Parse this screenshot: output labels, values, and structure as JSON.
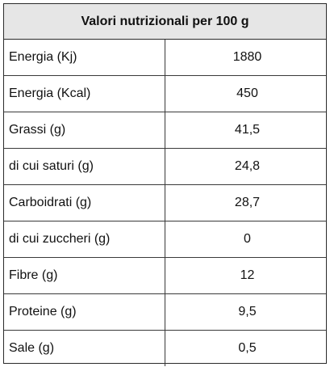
{
  "table": {
    "title": "Valori nutrizionali per 100 g",
    "rows": [
      {
        "label": "Energia (Kj)",
        "value": "1880"
      },
      {
        "label": "Energia (Kcal)",
        "value": "450"
      },
      {
        "label": "Grassi (g)",
        "value": "41,5"
      },
      {
        "label": "di cui saturi (g)",
        "value": "24,8"
      },
      {
        "label": "Carboidrati (g)",
        "value": "28,7"
      },
      {
        "label": "di cui zuccheri (g)",
        "value": "0"
      },
      {
        "label": "Fibre (g)",
        "value": "12"
      },
      {
        "label": "Proteine (g)",
        "value": "9,5"
      },
      {
        "label": "Sale (g)",
        "value": "0,5"
      }
    ]
  }
}
